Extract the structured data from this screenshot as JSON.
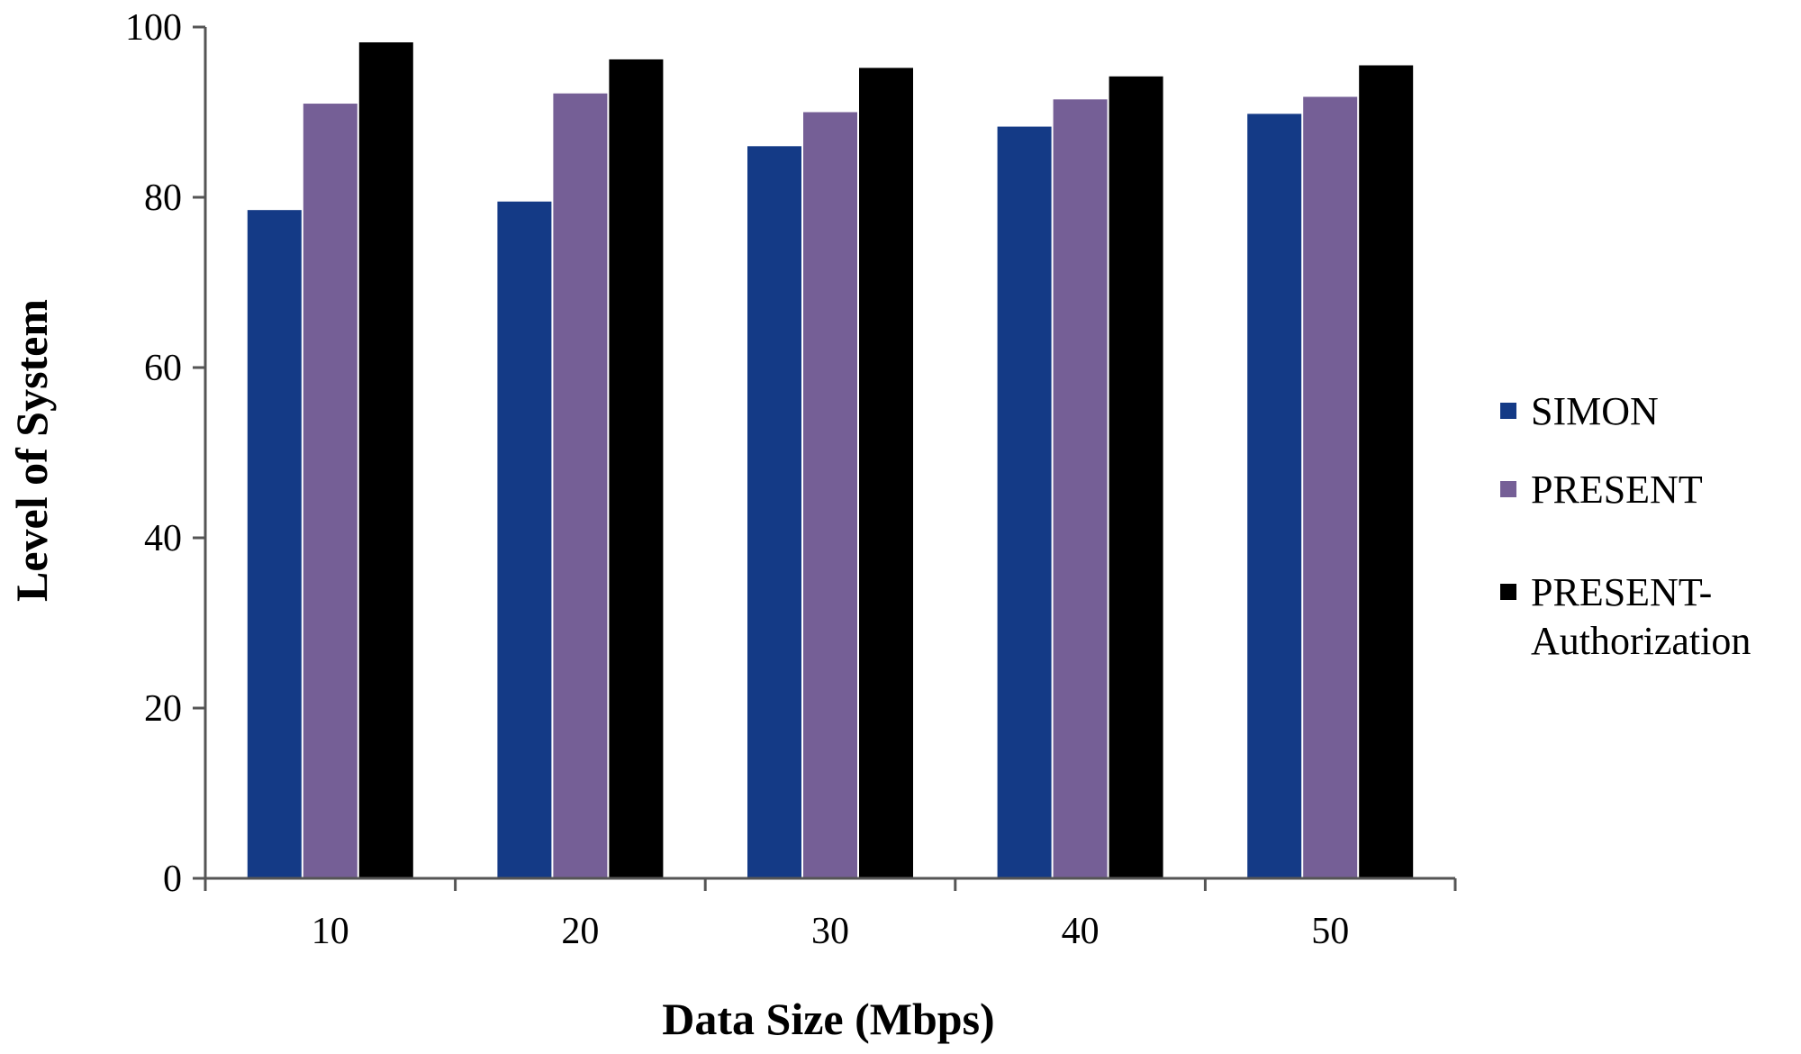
{
  "chart_data": {
    "type": "bar",
    "categories": [
      "10",
      "20",
      "30",
      "40",
      "50"
    ],
    "series": [
      {
        "name": "SIMON",
        "color": "#143a86",
        "values": [
          78.5,
          79.5,
          86,
          88.3,
          89.8
        ]
      },
      {
        "name": "PRESENT",
        "color": "#755f96",
        "values": [
          91,
          92.2,
          90,
          91.5,
          91.8
        ]
      },
      {
        "name": "PRESENT-Authorization",
        "name_lines": [
          "PRESENT-",
          "Authorization"
        ],
        "color": "#000000",
        "values": [
          98.2,
          96.2,
          95.2,
          94.2,
          95.5
        ]
      }
    ],
    "xlabel": "Data Size (Mbps)",
    "ylabel": "Level of System",
    "ylim": [
      0,
      100
    ],
    "yticks": [
      0,
      20,
      40,
      60,
      80,
      100
    ],
    "grid": false,
    "legend_position": "right"
  }
}
